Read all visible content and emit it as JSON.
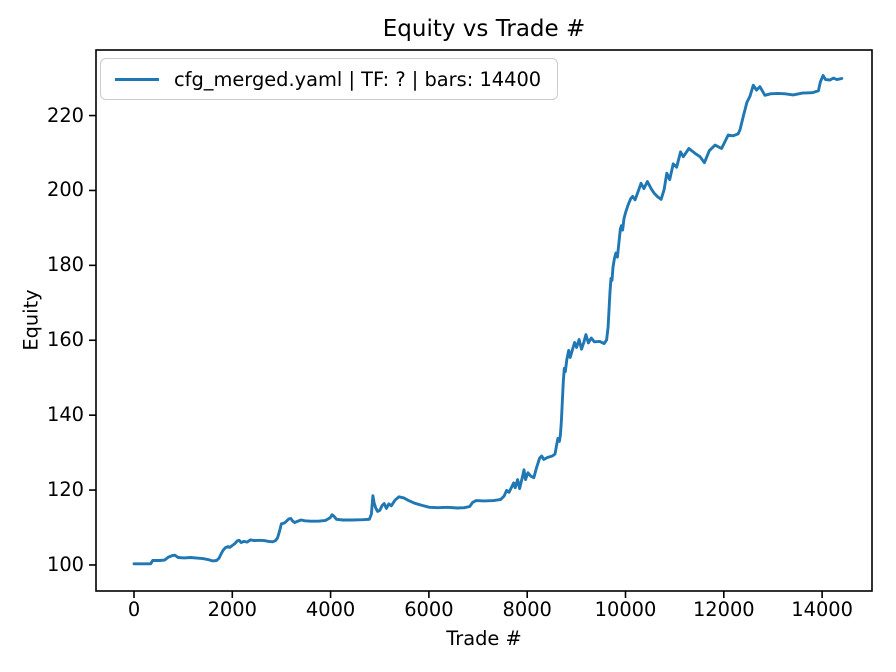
{
  "chart_data": {
    "type": "line",
    "title": "Equity vs Trade #",
    "xlabel": "Trade #",
    "ylabel": "Equity",
    "grid": false,
    "legend": {
      "position": "upper-left",
      "entries": [
        "cfg_merged.yaml | TF: ? | bars: 14400"
      ]
    },
    "x_ticks": [
      0,
      2000,
      4000,
      6000,
      8000,
      10000,
      12000,
      14000
    ],
    "y_ticks": [
      100,
      120,
      140,
      160,
      180,
      200,
      220
    ],
    "xlim": [
      -773,
      15015
    ],
    "ylim": [
      93.05,
      237.5
    ],
    "axis_color": "#000000",
    "line_color": "#1f77b4",
    "series": [
      {
        "name": "cfg_merged.yaml | TF: ? | bars: 14400",
        "color": "#1f77b4",
        "points": [
          [
            0,
            100.3
          ],
          [
            160,
            100.3
          ],
          [
            340,
            100.3
          ],
          [
            380,
            101.2
          ],
          [
            520,
            101.2
          ],
          [
            620,
            101.3
          ],
          [
            700,
            102.1
          ],
          [
            780,
            102.5
          ],
          [
            830,
            102.6
          ],
          [
            900,
            102.0
          ],
          [
            1020,
            101.9
          ],
          [
            1150,
            102.0
          ],
          [
            1250,
            101.9
          ],
          [
            1400,
            101.7
          ],
          [
            1520,
            101.4
          ],
          [
            1600,
            101.1
          ],
          [
            1680,
            101.2
          ],
          [
            1730,
            101.8
          ],
          [
            1770,
            102.9
          ],
          [
            1810,
            103.9
          ],
          [
            1860,
            104.6
          ],
          [
            1910,
            104.9
          ],
          [
            1950,
            104.7
          ],
          [
            2000,
            105.2
          ],
          [
            2050,
            105.7
          ],
          [
            2100,
            106.4
          ],
          [
            2140,
            106.6
          ],
          [
            2180,
            106.0
          ],
          [
            2240,
            106.3
          ],
          [
            2300,
            106.1
          ],
          [
            2370,
            106.7
          ],
          [
            2450,
            106.5
          ],
          [
            2550,
            106.6
          ],
          [
            2650,
            106.5
          ],
          [
            2740,
            106.3
          ],
          [
            2820,
            106.2
          ],
          [
            2880,
            106.5
          ],
          [
            2920,
            107.2
          ],
          [
            2960,
            109.0
          ],
          [
            3000,
            111.0
          ],
          [
            3060,
            111.2
          ],
          [
            3110,
            111.8
          ],
          [
            3150,
            112.3
          ],
          [
            3190,
            112.4
          ],
          [
            3230,
            111.7
          ],
          [
            3270,
            111.3
          ],
          [
            3330,
            111.7
          ],
          [
            3400,
            112.0
          ],
          [
            3480,
            111.8
          ],
          [
            3600,
            111.7
          ],
          [
            3750,
            111.7
          ],
          [
            3900,
            111.9
          ],
          [
            3990,
            112.6
          ],
          [
            4030,
            113.4
          ],
          [
            4070,
            113.0
          ],
          [
            4120,
            112.2
          ],
          [
            4250,
            112.0
          ],
          [
            4450,
            112.0
          ],
          [
            4650,
            112.1
          ],
          [
            4790,
            112.2
          ],
          [
            4830,
            113.6
          ],
          [
            4860,
            118.5
          ],
          [
            4885,
            116.6
          ],
          [
            4915,
            115.3
          ],
          [
            4955,
            114.3
          ],
          [
            5000,
            114.6
          ],
          [
            5050,
            115.9
          ],
          [
            5090,
            116.4
          ],
          [
            5135,
            115.1
          ],
          [
            5185,
            116.3
          ],
          [
            5235,
            115.8
          ],
          [
            5310,
            117.3
          ],
          [
            5390,
            118.2
          ],
          [
            5490,
            117.9
          ],
          [
            5590,
            117.2
          ],
          [
            5710,
            116.5
          ],
          [
            5860,
            115.9
          ],
          [
            6010,
            115.4
          ],
          [
            6180,
            115.3
          ],
          [
            6380,
            115.4
          ],
          [
            6580,
            115.2
          ],
          [
            6720,
            115.3
          ],
          [
            6830,
            115.6
          ],
          [
            6890,
            116.7
          ],
          [
            6960,
            117.2
          ],
          [
            7120,
            117.1
          ],
          [
            7320,
            117.2
          ],
          [
            7460,
            117.5
          ],
          [
            7530,
            118.4
          ],
          [
            7580,
            119.9
          ],
          [
            7630,
            119.4
          ],
          [
            7690,
            121.0
          ],
          [
            7725,
            121.9
          ],
          [
            7755,
            120.6
          ],
          [
            7805,
            122.8
          ],
          [
            7845,
            120.4
          ],
          [
            7905,
            123.6
          ],
          [
            7935,
            125.4
          ],
          [
            7965,
            122.8
          ],
          [
            8015,
            124.6
          ],
          [
            8075,
            123.7
          ],
          [
            8135,
            123.3
          ],
          [
            8195,
            126.2
          ],
          [
            8255,
            128.6
          ],
          [
            8295,
            129.1
          ],
          [
            8335,
            128.2
          ],
          [
            8410,
            128.7
          ],
          [
            8510,
            129.1
          ],
          [
            8565,
            129.6
          ],
          [
            8595,
            131.7
          ],
          [
            8625,
            133.8
          ],
          [
            8655,
            133.0
          ],
          [
            8675,
            134.7
          ],
          [
            8695,
            138.5
          ],
          [
            8715,
            143.5
          ],
          [
            8735,
            149.0
          ],
          [
            8755,
            152.5
          ],
          [
            8775,
            151.6
          ],
          [
            8805,
            154.8
          ],
          [
            8845,
            157.3
          ],
          [
            8875,
            155.4
          ],
          [
            8925,
            157.7
          ],
          [
            8965,
            159.4
          ],
          [
            9005,
            158.1
          ],
          [
            9055,
            160.2
          ],
          [
            9105,
            157.6
          ],
          [
            9155,
            159.6
          ],
          [
            9195,
            161.5
          ],
          [
            9245,
            159.3
          ],
          [
            9305,
            160.6
          ],
          [
            9365,
            159.6
          ],
          [
            9475,
            159.7
          ],
          [
            9565,
            159.1
          ],
          [
            9615,
            160.1
          ],
          [
            9645,
            163.5
          ],
          [
            9665,
            168.0
          ],
          [
            9685,
            173.0
          ],
          [
            9705,
            176.5
          ],
          [
            9725,
            176.0
          ],
          [
            9745,
            179.5
          ],
          [
            9775,
            181.8
          ],
          [
            9805,
            183.3
          ],
          [
            9835,
            182.2
          ],
          [
            9865,
            186.0
          ],
          [
            9895,
            189.6
          ],
          [
            9915,
            190.6
          ],
          [
            9940,
            189.4
          ],
          [
            9970,
            192.5
          ],
          [
            10005,
            194.3
          ],
          [
            10055,
            196.2
          ],
          [
            10105,
            197.8
          ],
          [
            10145,
            198.4
          ],
          [
            10195,
            197.5
          ],
          [
            10255,
            199.6
          ],
          [
            10315,
            201.9
          ],
          [
            10375,
            200.5
          ],
          [
            10445,
            202.4
          ],
          [
            10525,
            200.4
          ],
          [
            10585,
            199.2
          ],
          [
            10655,
            198.3
          ],
          [
            10725,
            197.6
          ],
          [
            10785,
            200.2
          ],
          [
            10840,
            204.6
          ],
          [
            10900,
            202.9
          ],
          [
            10970,
            207.1
          ],
          [
            11040,
            206.2
          ],
          [
            11120,
            210.3
          ],
          [
            11175,
            209.0
          ],
          [
            11290,
            211.2
          ],
          [
            11415,
            209.9
          ],
          [
            11515,
            209.0
          ],
          [
            11605,
            207.4
          ],
          [
            11705,
            210.6
          ],
          [
            11820,
            212.1
          ],
          [
            11955,
            211.2
          ],
          [
            12090,
            214.8
          ],
          [
            12190,
            214.6
          ],
          [
            12290,
            215.1
          ],
          [
            12330,
            216.2
          ],
          [
            12400,
            220.0
          ],
          [
            12470,
            223.5
          ],
          [
            12530,
            225.1
          ],
          [
            12600,
            228.1
          ],
          [
            12665,
            226.8
          ],
          [
            12735,
            227.7
          ],
          [
            12835,
            225.4
          ],
          [
            12950,
            225.8
          ],
          [
            13100,
            225.9
          ],
          [
            13250,
            225.8
          ],
          [
            13410,
            225.5
          ],
          [
            13600,
            226.0
          ],
          [
            13800,
            226.1
          ],
          [
            13925,
            226.6
          ],
          [
            13965,
            229.0
          ],
          [
            14020,
            230.7
          ],
          [
            14070,
            229.6
          ],
          [
            14160,
            229.5
          ],
          [
            14230,
            230.0
          ],
          [
            14300,
            229.6
          ],
          [
            14400,
            229.9
          ]
        ]
      }
    ]
  }
}
